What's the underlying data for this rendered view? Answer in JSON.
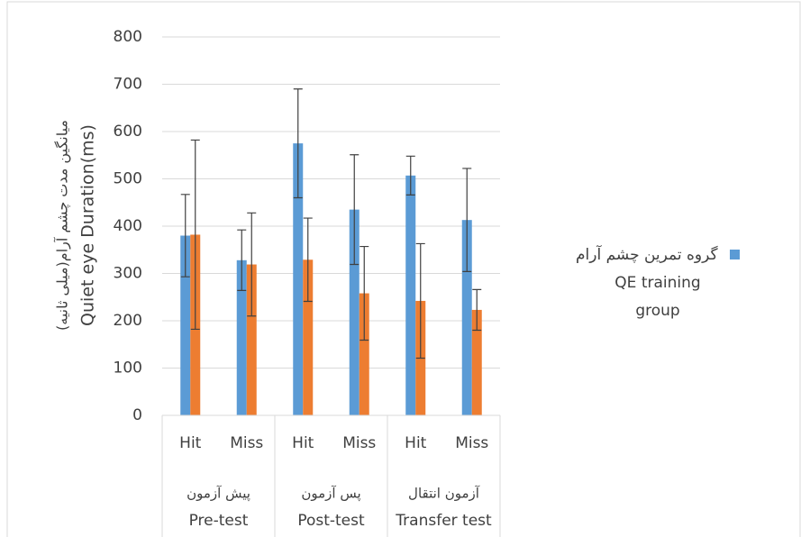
{
  "chart_data": {
    "type": "bar",
    "y_label_fa": "میانگین مدت چشم آرام(میلی ثانیه)",
    "y_label": "Quiet eye Duration(ms)",
    "categories": [
      "Hit",
      "Miss",
      "Hit",
      "Miss",
      "Hit",
      "Miss"
    ],
    "groups": [
      {
        "label_fa": "پیش آزمون",
        "label": "Pre-test"
      },
      {
        "label_fa": "پس آزمون",
        "label": "Post-test"
      },
      {
        "label_fa": "آزمون انتقال",
        "label": "Transfer test"
      }
    ],
    "series": [
      {
        "name": "QE training group",
        "name_fa": "گروه تمرین چشم آرام",
        "color": "#5b9bd5",
        "values": [
          380,
          328,
          575,
          435,
          507,
          413
        ],
        "errors": [
          87,
          64,
          115,
          116,
          41,
          109
        ]
      },
      {
        "color": "#ed7d31",
        "values": [
          382,
          319,
          329,
          258,
          242,
          223
        ],
        "errors": [
          200,
          109,
          88,
          99,
          121,
          43
        ]
      }
    ],
    "ylim": [
      0,
      800
    ],
    "yticks": [
      0,
      100,
      200,
      300,
      400,
      500,
      600,
      700,
      800
    ],
    "grid": true
  }
}
